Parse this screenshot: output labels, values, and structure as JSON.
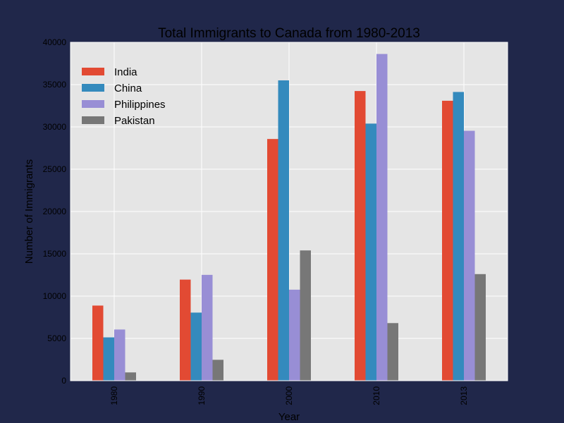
{
  "chart_data": {
    "type": "bar",
    "title": "Total Immigrants to Canada from 1980-2013",
    "xlabel": "Year",
    "ylabel": "Number of Immigrants",
    "categories": [
      "1980",
      "1990",
      "2000",
      "2010",
      "2013"
    ],
    "ylim": [
      0,
      40000
    ],
    "yticks": [
      0,
      5000,
      10000,
      15000,
      20000,
      25000,
      30000,
      35000,
      40000
    ],
    "grid": true,
    "legend_position": "top-left",
    "series": [
      {
        "name": "India",
        "color": "#e24a33",
        "values": [
          8880,
          11950,
          28570,
          34240,
          33090
        ]
      },
      {
        "name": "China",
        "color": "#348abd",
        "values": [
          5120,
          8050,
          35500,
          30390,
          34130
        ]
      },
      {
        "name": "Philippines",
        "color": "#988ed5",
        "values": [
          6050,
          12510,
          10760,
          38620,
          29540
        ]
      },
      {
        "name": "Pakistan",
        "color": "#777777",
        "values": [
          980,
          2470,
          15400,
          6810,
          12600
        ]
      }
    ],
    "plot_background": "#e5e5e5",
    "page_background": "#20274a"
  }
}
